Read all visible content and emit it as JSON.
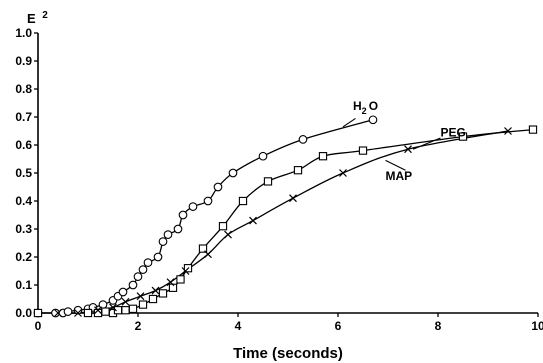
{
  "chart_data": {
    "type": "line",
    "title": "",
    "xlabel": "Time (seconds)",
    "ylabel": "E²",
    "ylabel_base": "E",
    "ylabel_sup": "2",
    "xlim": [
      0,
      10
    ],
    "ylim": [
      0,
      1.0
    ],
    "x_ticks": [
      0,
      2,
      4,
      6,
      8,
      10
    ],
    "y_ticks": [
      0.0,
      0.1,
      0.2,
      0.3,
      0.4,
      0.5,
      0.6,
      0.7,
      0.8,
      0.9,
      1.0
    ],
    "x_tick_labels": [
      "0",
      "2",
      "4",
      "6",
      "8",
      "10"
    ],
    "y_tick_labels": [
      "0.0",
      "0.1",
      "0.2",
      "0.3",
      "0.4",
      "0.5",
      "0.6",
      "0.7",
      "0.8",
      "0.9",
      "1.0"
    ],
    "grid": false,
    "legend": "none",
    "series": [
      {
        "name": "H₂O",
        "label_base": "H",
        "label_sub": "2",
        "label_rest": "O",
        "marker": "circle",
        "x": [
          0.0,
          0.35,
          0.5,
          0.6,
          0.8,
          1.0,
          1.1,
          1.3,
          1.5,
          1.6,
          1.7,
          1.9,
          2.0,
          2.1,
          2.2,
          2.4,
          2.5,
          2.6,
          2.8,
          2.9,
          3.1,
          3.4,
          3.6,
          3.9,
          4.5,
          5.3,
          6.7
        ],
        "y": [
          0.0,
          0.0,
          0.0,
          0.005,
          0.01,
          0.015,
          0.02,
          0.03,
          0.045,
          0.06,
          0.075,
          0.1,
          0.13,
          0.155,
          0.18,
          0.2,
          0.255,
          0.28,
          0.3,
          0.35,
          0.38,
          0.4,
          0.45,
          0.5,
          0.56,
          0.62,
          0.69
        ]
      },
      {
        "name": "PEG",
        "marker": "square",
        "x": [
          0.0,
          1.0,
          1.2,
          1.35,
          1.5,
          1.6,
          1.75,
          1.9,
          2.1,
          2.3,
          2.5,
          2.7,
          2.85,
          3.0,
          3.3,
          3.7,
          4.1,
          4.6,
          5.2,
          5.7,
          6.5,
          8.5,
          9.9
        ],
        "y": [
          0.0,
          0.0,
          0.0,
          0.005,
          0.0,
          0.01,
          0.01,
          0.015,
          0.03,
          0.05,
          0.07,
          0.09,
          0.12,
          0.16,
          0.23,
          0.31,
          0.4,
          0.47,
          0.51,
          0.56,
          0.58,
          0.63,
          0.655
        ]
      },
      {
        "name": "MAP",
        "marker": "cross",
        "x": [
          0.4,
          0.8,
          1.2,
          1.5,
          1.75,
          2.05,
          2.35,
          2.65,
          2.95,
          3.4,
          3.8,
          4.3,
          5.1,
          6.1,
          7.4,
          9.4
        ],
        "y": [
          0.0,
          0.0,
          0.01,
          0.02,
          0.04,
          0.06,
          0.08,
          0.11,
          0.15,
          0.21,
          0.28,
          0.33,
          0.41,
          0.5,
          0.585,
          0.65
        ]
      }
    ],
    "annotations": [
      {
        "series": "H₂O",
        "text": "H₂O"
      },
      {
        "series": "PEG",
        "text": "PEG"
      },
      {
        "series": "MAP",
        "text": "MAP"
      }
    ]
  }
}
